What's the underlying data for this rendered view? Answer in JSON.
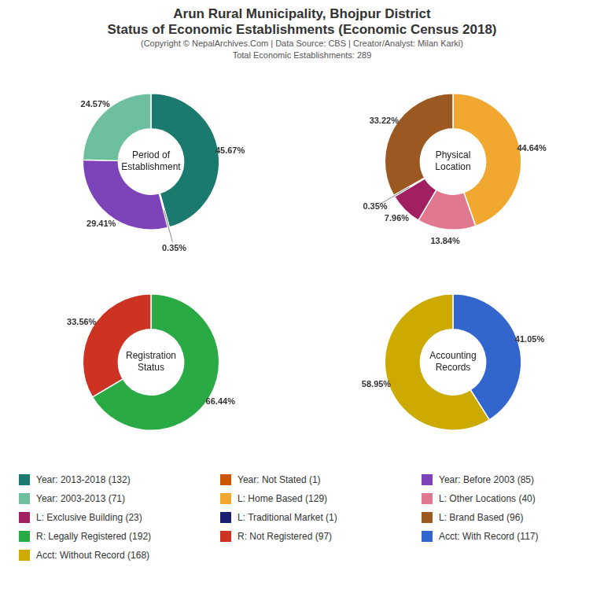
{
  "title": "Arun Rural Municipality, Bhojpur District\nStatus of Economic Establishments (Economic Census 2018)",
  "subtitle": "(Copyright © NepalArchives.Com | Data Source: CBS | Creator/Analyst: Milan Karki)\nTotal Economic Establishments: 289",
  "chart_data": [
    {
      "type": "doughnut",
      "title": "Period of\nEstablishment",
      "categories": [
        "Year: 2013-2018 (132)",
        "Year: Not Stated (1)",
        "Year: Before 2003 (85)",
        "Year: 2003-2013 (71)"
      ],
      "values": [
        45.67,
        0.35,
        29.41,
        24.57
      ],
      "value_labels": [
        "45.67%",
        "0.35%",
        "29.41%",
        "24.57%"
      ],
      "colors": [
        "#1a7a6e",
        "#cc5500",
        "#7c44b8",
        "#6dbfa0"
      ],
      "data_labels": true
    },
    {
      "type": "doughnut",
      "title": "Physical\nLocation",
      "categories": [
        "L: Home Based (129)",
        "L: Other Locations (40)",
        "L: Exclusive Building (23)",
        "L: Traditional Market (1)",
        "L: Brand Based (96)",
        null
      ],
      "values": [
        44.64,
        13.84,
        7.96,
        0.35,
        33.22,
        0
      ],
      "value_labels": [
        "44.64%",
        "13.84%",
        "7.96%",
        "0.35%",
        "33.22%",
        null
      ],
      "colors": [
        "#f0a830",
        "#e07890",
        "#a02060",
        "#1a2070",
        "#9b5820",
        "#ffffff"
      ],
      "data_labels": true
    },
    {
      "type": "doughnut",
      "title": "Registration\nStatus",
      "categories": [
        "R: Legally Registered (192)",
        "R: Not Registered (97)"
      ],
      "values": [
        66.44,
        33.56
      ],
      "value_labels": [
        "66.44%",
        "33.56%"
      ],
      "colors": [
        "#2aaa45",
        "#cc3322"
      ],
      "data_labels": true
    },
    {
      "type": "doughnut",
      "title": "Accounting\nRecords",
      "categories": [
        "Acct: With Record (117)",
        "Acct: Without Record (168)"
      ],
      "values": [
        41.05,
        58.95
      ],
      "value_labels": [
        "41.05%",
        "58.95%"
      ],
      "colors": [
        "#3366cc",
        "#ccaa00"
      ],
      "data_labels": true
    }
  ]
}
